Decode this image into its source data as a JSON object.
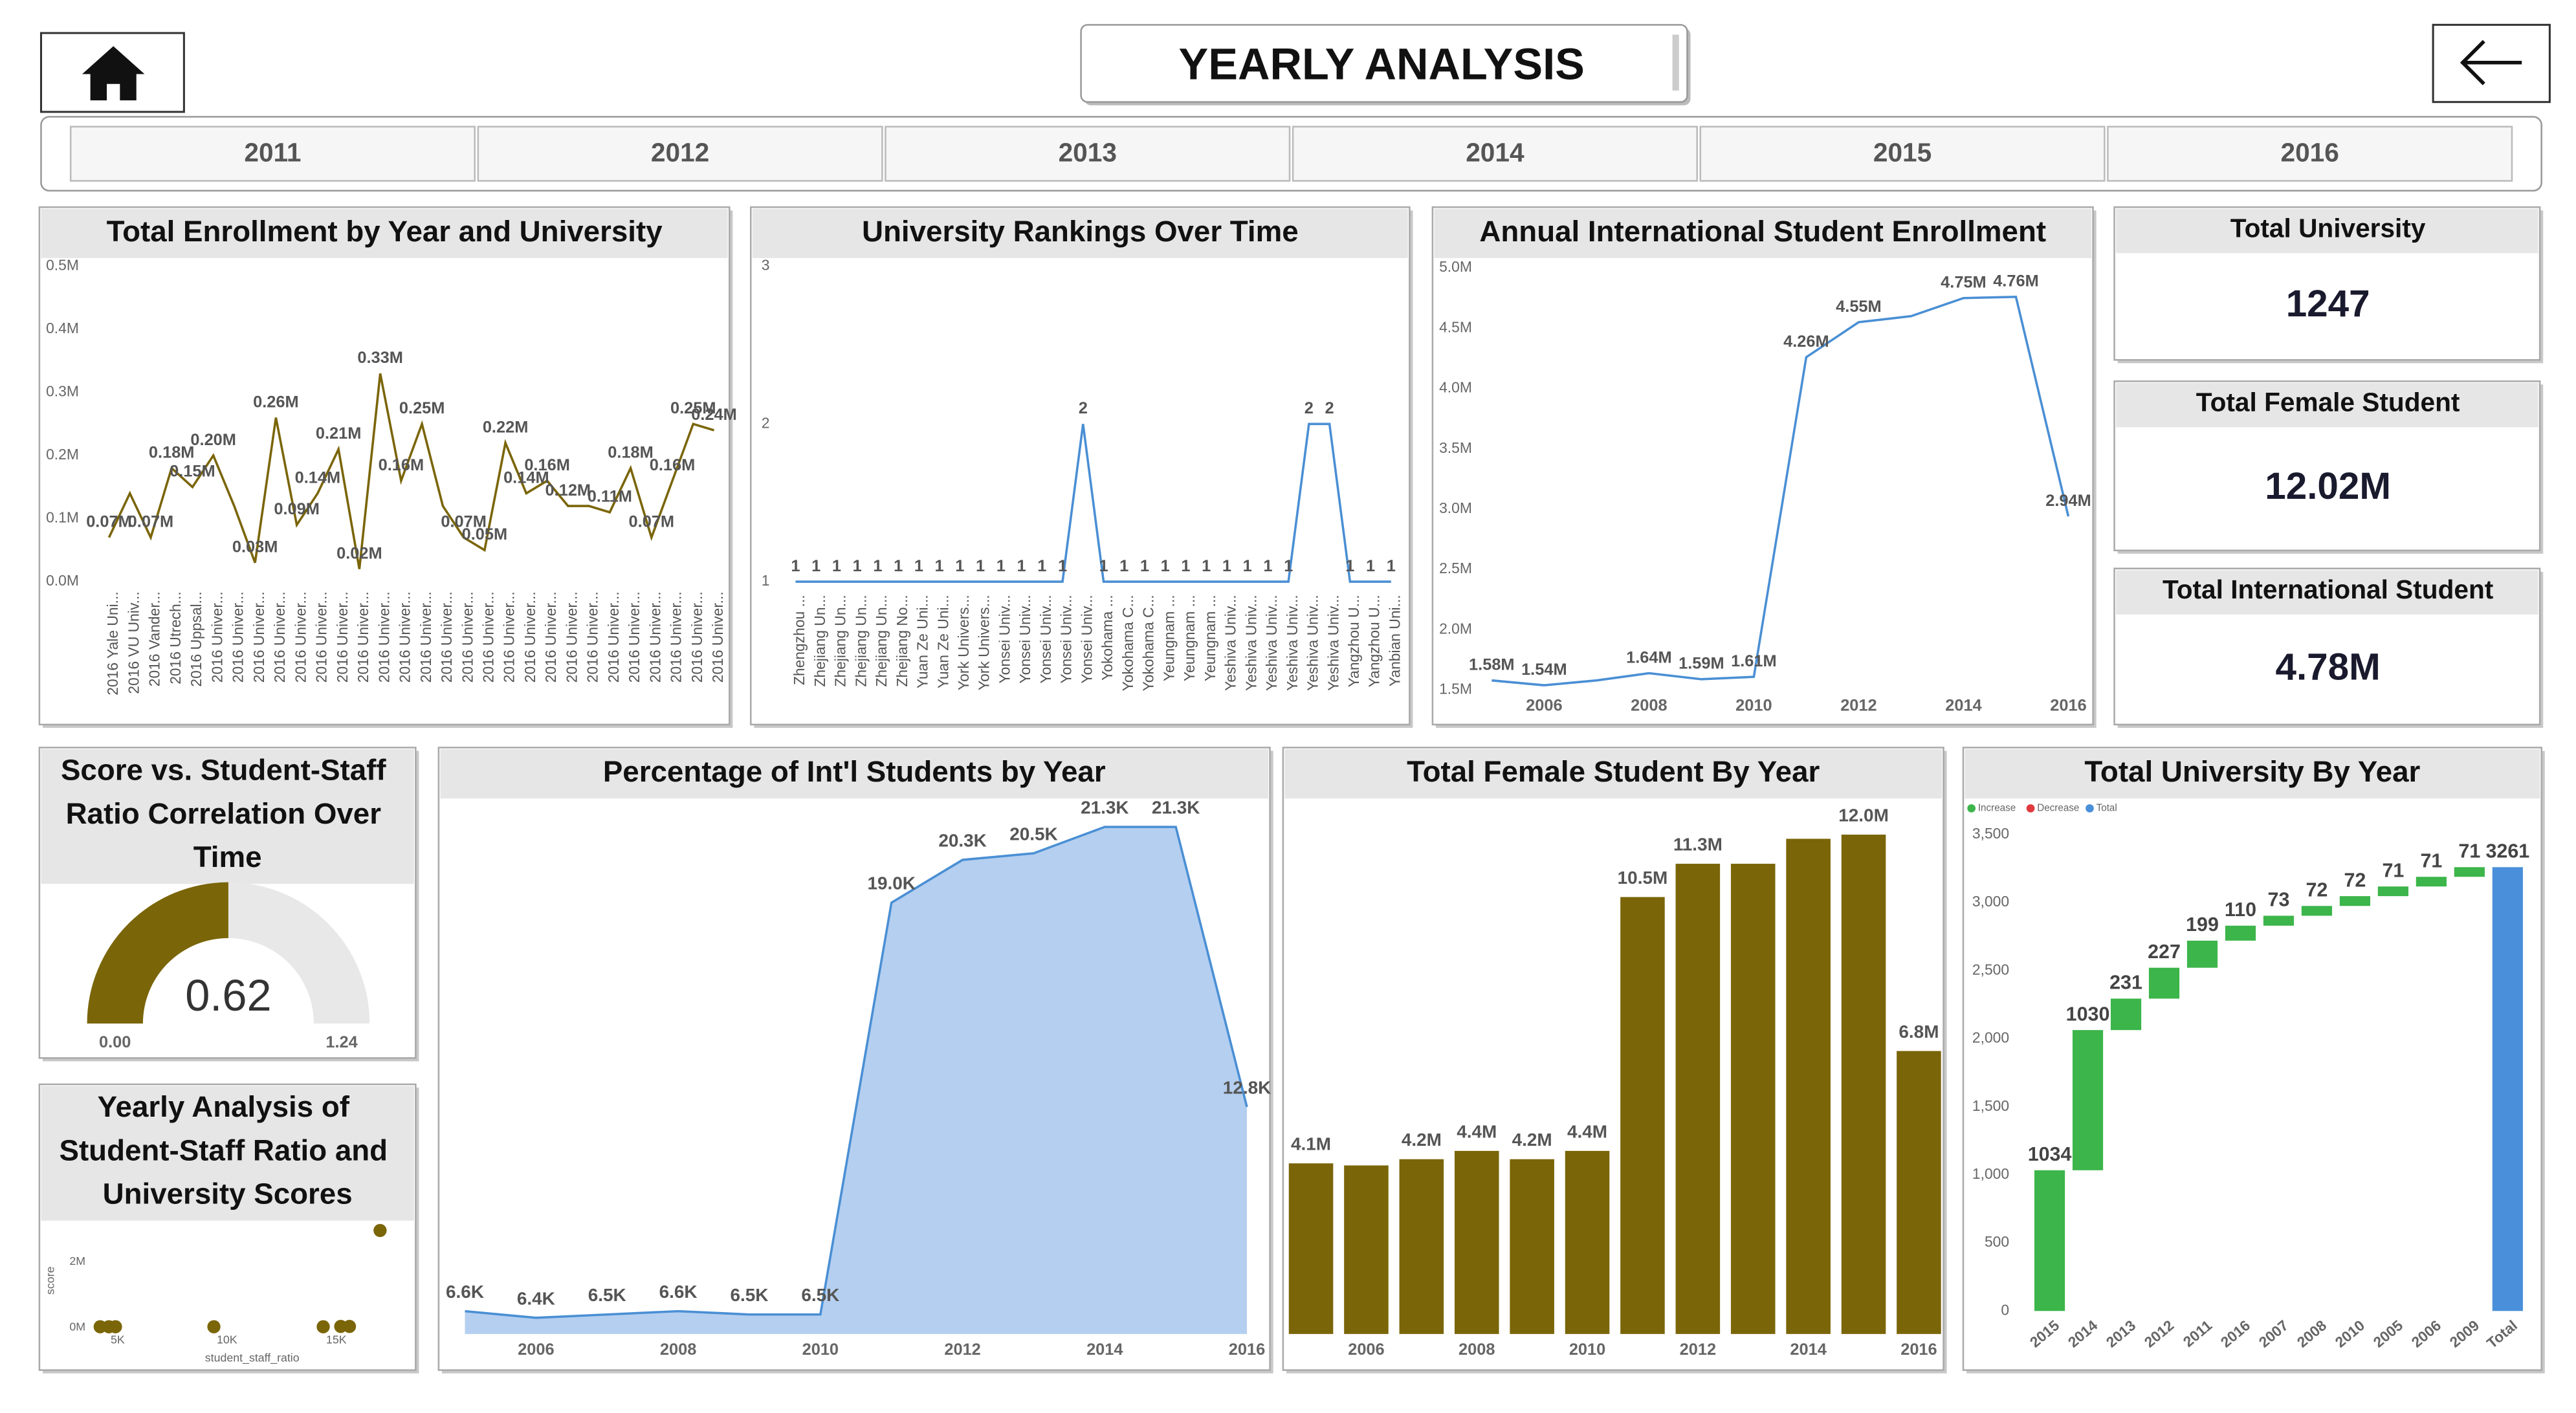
{
  "header": {
    "title": "YEARLY ANALYSIS"
  },
  "year_slicer": [
    "2011",
    "2012",
    "2013",
    "2014",
    "2015",
    "2016"
  ],
  "cards": [
    {
      "label": "Total University",
      "value": "1247"
    },
    {
      "label": "Total Female Student",
      "value": "12.02M"
    },
    {
      "label": "Total International Student",
      "value": "4.78M"
    }
  ],
  "chart_data": [
    {
      "type": "line",
      "title": "Total Enrollment by Year and University",
      "categories": [
        "2016 Yale Uni...",
        "2016 VU Univ...",
        "2016 Vander...",
        "2016 Utrech...",
        "2016 Uppsal...",
        "2016 Univer...",
        "2016 Univer...",
        "2016 Univer...",
        "2016 Univer...",
        "2016 Univer...",
        "2016 Univer...",
        "2016 Univer...",
        "2016 Univer...",
        "2016 Univer...",
        "2016 Univer...",
        "2016 Univer...",
        "2016 Univer...",
        "2016 Univer...",
        "2016 Univer...",
        "2016 Univer...",
        "2016 Univer...",
        "2016 Univer...",
        "2016 Univer...",
        "2016 Univer...",
        "2016 Univer...",
        "2016 Univer...",
        "2016 Univer...",
        "2016 Univer...",
        "2016 Univer...",
        "2016 Univer..."
      ],
      "values": [
        0.07,
        0.14,
        0.07,
        0.18,
        0.15,
        0.2,
        0.12,
        0.03,
        0.26,
        0.09,
        0.14,
        0.21,
        0.02,
        0.33,
        0.16,
        0.25,
        0.12,
        0.07,
        0.05,
        0.22,
        0.14,
        0.16,
        0.12,
        0.12,
        0.11,
        0.18,
        0.07,
        0.16,
        0.25,
        0.24
      ],
      "value_labels": [
        "0.07M",
        null,
        "0.07M",
        "0.18M",
        "0.15M",
        "0.20M",
        null,
        "0.03M",
        "0.26M",
        "0.09M",
        "0.14M",
        "0.21M",
        "0.02M",
        "0.33M",
        "0.16M",
        "0.25M",
        null,
        "0.07M",
        "0.05M",
        "0.22M",
        "0.14M",
        "0.16M",
        "0.12M",
        null,
        "0.11M",
        "0.18M",
        "0.07M",
        "0.16M",
        "0.25M",
        "0.24M"
      ],
      "color": "#7a6508",
      "data_labels": true,
      "ylim": [
        0,
        0.5
      ],
      "yticks": [
        {
          "value": 0,
          "label": "0.0M"
        },
        {
          "value": 0.1,
          "label": "0.1M"
        },
        {
          "value": 0.2,
          "label": "0.2M"
        },
        {
          "value": 0.3,
          "label": "0.3M"
        },
        {
          "value": 0.4,
          "label": "0.4M"
        },
        {
          "value": 0.5,
          "label": "0.5M"
        }
      ]
    },
    {
      "type": "line",
      "title": "University Rankings Over Time",
      "categories": [
        "Zhengzhou ...",
        "Zhejiang Un...",
        "Zhejiang Un...",
        "Zhejiang Un...",
        "Zhejiang Un...",
        "Zhejiang No...",
        "Yuan Ze Uni...",
        "Yuan Ze Uni...",
        "York Univers...",
        "York Univers...",
        "Yonsei Univ...",
        "Yonsei Univ...",
        "Yonsei Univ...",
        "Yonsei Univ...",
        "Yonsei Univ...",
        "Yokohama ...",
        "Yokohama C...",
        "Yokohama C...",
        "Yeungnam ...",
        "Yeungnam ...",
        "Yeungnam ...",
        "Yeshiva Univ...",
        "Yeshiva Univ...",
        "Yeshiva Univ...",
        "Yeshiva Univ...",
        "Yeshiva Univ...",
        "Yeshiva Univ...",
        "Yangzhou U...",
        "Yangzhou U...",
        "Yanbian Uni..."
      ],
      "values": [
        1,
        1,
        1,
        1,
        1,
        1,
        1,
        1,
        1,
        1,
        1,
        1,
        1,
        1,
        2,
        1,
        1,
        1,
        1,
        1,
        1,
        1,
        1,
        1,
        1,
        2,
        2,
        1,
        1,
        1
      ],
      "color": "#4a8fd4",
      "data_labels": true,
      "ylim": [
        1,
        3
      ],
      "yticks": [
        1,
        2,
        3
      ]
    },
    {
      "type": "line",
      "title": "Annual International Student Enrollment",
      "x": [
        2005,
        2006,
        2007,
        2008,
        2009,
        2010,
        2011,
        2012,
        2013,
        2014,
        2015,
        2016
      ],
      "values": [
        1.58,
        1.54,
        1.58,
        1.64,
        1.59,
        1.61,
        4.26,
        4.55,
        4.6,
        4.75,
        4.76,
        2.94
      ],
      "value_labels": [
        "1.58M",
        "1.54M",
        null,
        "1.64M",
        "1.59M",
        "1.61M",
        "4.26M",
        "4.55M",
        null,
        "4.75M",
        "4.76M",
        "2.94M"
      ],
      "color": "#4a8fd4",
      "data_labels": true,
      "xlim": [
        2005,
        2016
      ],
      "xticks": [
        2006,
        2008,
        2010,
        2012,
        2014,
        2016
      ],
      "ylim": [
        1.5,
        5.0
      ],
      "yticks": [
        {
          "value": 1.5,
          "label": "1.5M"
        },
        {
          "value": 2.0,
          "label": "2.0M"
        },
        {
          "value": 2.5,
          "label": "2.5M"
        },
        {
          "value": 3.0,
          "label": "3.0M"
        },
        {
          "value": 3.5,
          "label": "3.5M"
        },
        {
          "value": 4.0,
          "label": "4.0M"
        },
        {
          "value": 4.5,
          "label": "4.5M"
        },
        {
          "value": 5.0,
          "label": "5.0M"
        }
      ]
    },
    {
      "type": "area",
      "title": "Percentage of Int'l Students by Year",
      "x": [
        2005,
        2006,
        2007,
        2008,
        2009,
        2010,
        2011,
        2012,
        2013,
        2014,
        2015,
        2016
      ],
      "values": [
        6.6,
        6.4,
        6.5,
        6.6,
        6.5,
        6.5,
        19.0,
        20.3,
        20.5,
        21.3,
        21.3,
        12.8
      ],
      "value_labels": [
        "6.6K",
        "6.4K",
        "6.5K",
        "6.6K",
        "6.5K",
        "6.5K",
        "19.0K",
        "20.3K",
        "20.5K",
        "21.3K",
        "21.3K",
        "12.8K"
      ],
      "color": "#b5cff0",
      "line_color": "#4a8fd4",
      "xlim": [
        2005,
        2016
      ],
      "xticks": [
        2006,
        2008,
        2010,
        2012,
        2014,
        2016
      ]
    },
    {
      "type": "bar",
      "title": "Total Female Student By Year",
      "x": [
        2005,
        2006,
        2007,
        2008,
        2009,
        2010,
        2011,
        2012,
        2013,
        2014,
        2015,
        2016
      ],
      "values": [
        4.1,
        4.05,
        4.2,
        4.4,
        4.2,
        4.4,
        10.5,
        11.3,
        11.3,
        11.9,
        12.0,
        6.8
      ],
      "value_labels": [
        "4.1M",
        null,
        "4.2M",
        "4.4M",
        "4.2M",
        "4.4M",
        "10.5M",
        "11.3M",
        null,
        null,
        "12.0M",
        "6.8M"
      ],
      "color": "#7a6508",
      "xlim": [
        2005,
        2016
      ],
      "xticks": [
        2006,
        2008,
        2010,
        2012,
        2014,
        2016
      ]
    },
    {
      "type": "waterfall",
      "title": "Total University By Year",
      "categories": [
        "2015",
        "2014",
        "2013",
        "2012",
        "2011",
        "2016",
        "2007",
        "2008",
        "2010",
        "2005",
        "2006",
        "2009",
        "Total"
      ],
      "values": [
        1034,
        1030,
        231,
        227,
        199,
        110,
        73,
        72,
        72,
        71,
        71,
        71,
        3261
      ],
      "legend": [
        {
          "name": "Increase",
          "color": "#3cb54a"
        },
        {
          "name": "Decrease",
          "color": "#e0393e"
        },
        {
          "name": "Total",
          "color": "#4a8fd9"
        }
      ],
      "ylim": [
        0,
        3500
      ],
      "yticks": [
        0,
        500,
        {
          "value": 1000,
          "label": "1,000"
        },
        {
          "value": 1500,
          "label": "1,500"
        },
        {
          "value": 2000,
          "label": "2,000"
        },
        {
          "value": 2500,
          "label": "2,500"
        },
        {
          "value": 3000,
          "label": "3,000"
        },
        {
          "value": 3500,
          "label": "3,500"
        }
      ]
    },
    {
      "type": "gauge",
      "title": "Score vs. Student-Staff Ratio Correlation Over Time",
      "value": 0.62,
      "range": [
        {
          "value": 0,
          "label": "0.00"
        },
        1.24
      ],
      "color": "#7a6508",
      "track_color": "#e8e8e8"
    },
    {
      "type": "scatter",
      "title": "Yearly Analysis of Student-Staff Ratio and University Scores",
      "x_label": "student_staff_ratio",
      "y_label": "score",
      "x": [
        4200,
        4600,
        4900,
        9400,
        14400,
        15200,
        15600,
        17000
      ],
      "values": [
        20000,
        20000,
        20000,
        20000,
        20000,
        30000,
        30000,
        2950000
      ],
      "color": "#7a6508",
      "xlim": [
        3000,
        17800
      ],
      "xticks": [
        {
          "value": 5000,
          "label": "5K"
        },
        {
          "value": 10000,
          "label": "10K"
        },
        {
          "value": 15000,
          "label": "15K"
        }
      ],
      "ylim": [
        -300000,
        3150000
      ],
      "yticks": [
        {
          "value": 0,
          "label": "0M"
        },
        {
          "value": 2000000,
          "label": "2M"
        }
      ]
    }
  ]
}
